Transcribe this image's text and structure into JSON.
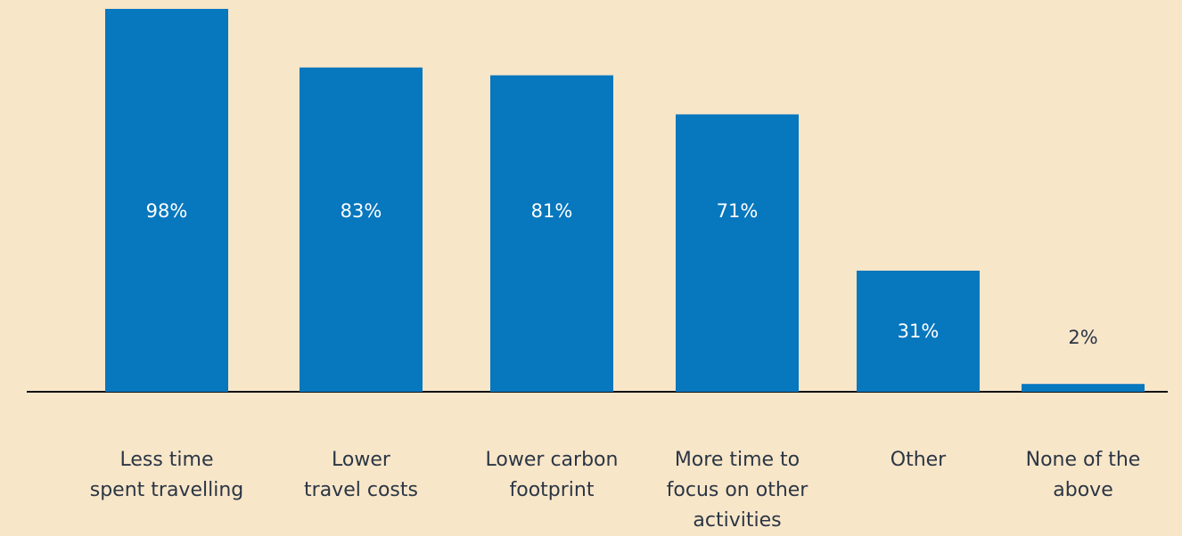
{
  "chart_data": {
    "type": "bar",
    "categories": [
      "Less time\nspent travelling",
      "Lower\ntravel costs",
      "Lower carbon\nfootprint",
      "More time to\nfocus on other\nactivities",
      "Other",
      "None of the\nabove"
    ],
    "values": [
      98,
      83,
      81,
      71,
      31,
      2
    ],
    "value_labels": [
      "98%",
      "83%",
      "81%",
      "71%",
      "31%",
      "2%"
    ],
    "color": "#0777be"
  }
}
